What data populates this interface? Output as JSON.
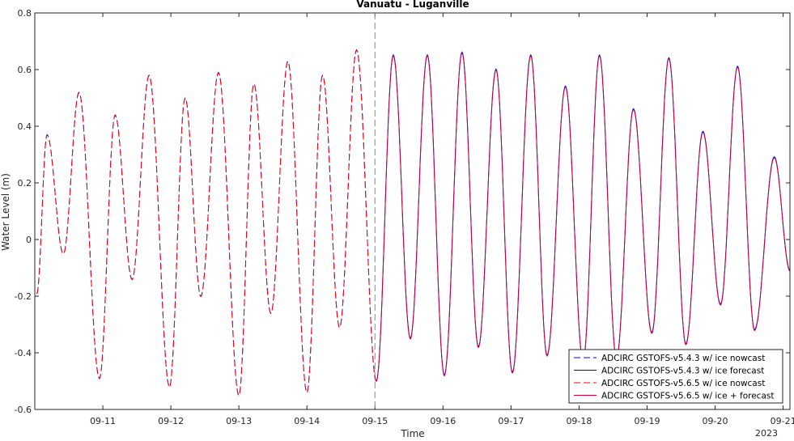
{
  "chart_data": {
    "type": "line",
    "title": "Vanuatu - Luganville",
    "xlabel": "Time",
    "ylabel": "Water Level (m)",
    "x_start": "2023-09-10 00:00",
    "x_end": "2023-09-21 03:00",
    "xlim_days": [
      0,
      11.1
    ],
    "ylim": [
      -0.6,
      0.8
    ],
    "x_ticks": [
      "09-11",
      "09-12",
      "09-13",
      "09-14",
      "09-15",
      "09-16",
      "09-17",
      "09-18",
      "09-19",
      "09-20",
      "09-21"
    ],
    "x_tick_year": "2023",
    "y_ticks": [
      "0.8",
      "0.6",
      "0.4",
      "0.2",
      "0",
      "-0.2",
      "-0.4",
      "-0.6"
    ],
    "y_tick_values": [
      0.8,
      0.6,
      0.4,
      0.2,
      0,
      -0.2,
      -0.4,
      -0.6
    ],
    "nowcast_forecast_divider": "09-15",
    "grid": false,
    "legend_position": "bottom-right",
    "series": [
      {
        "name": "ADCIRC GSTOFS-v5.4.3 w/ ice nowcast",
        "color": "#0000ff",
        "style": "dashed",
        "segment": "nowcast"
      },
      {
        "name": "ADCIRC GSTOFS-v5.4.3 w/ ice forecast",
        "color": "#0000ff",
        "style": "solid",
        "segment": "forecast"
      },
      {
        "name": "ADCIRC GSTOFS-v5.6.5 w/ ice nowcast",
        "color": "#ff0000",
        "style": "dashed",
        "segment": "nowcast"
      },
      {
        "name": "ADCIRC GSTOFS-v5.6.5 w/ ice + forecast",
        "color": "#cc0033",
        "style": "solid",
        "segment": "forecast"
      }
    ],
    "tidal_extrema": [
      {
        "t": 0.03,
        "y": -0.19
      },
      {
        "t": 0.18,
        "y": 0.37
      },
      {
        "t": 0.42,
        "y": -0.05
      },
      {
        "t": 0.65,
        "y": 0.52
      },
      {
        "t": 0.95,
        "y": -0.49
      },
      {
        "t": 1.18,
        "y": 0.44
      },
      {
        "t": 1.43,
        "y": -0.14
      },
      {
        "t": 1.68,
        "y": 0.58
      },
      {
        "t": 1.98,
        "y": -0.52
      },
      {
        "t": 2.21,
        "y": 0.5
      },
      {
        "t": 2.44,
        "y": -0.2
      },
      {
        "t": 2.7,
        "y": 0.59
      },
      {
        "t": 3.0,
        "y": -0.55
      },
      {
        "t": 3.22,
        "y": 0.55
      },
      {
        "t": 3.47,
        "y": -0.26
      },
      {
        "t": 3.72,
        "y": 0.63
      },
      {
        "t": 4.0,
        "y": -0.54
      },
      {
        "t": 4.23,
        "y": 0.58
      },
      {
        "t": 4.48,
        "y": -0.31
      },
      {
        "t": 4.73,
        "y": 0.67
      },
      {
        "t": 5.02,
        "y": -0.5
      },
      {
        "t": 5.27,
        "y": 0.65
      },
      {
        "t": 5.52,
        "y": -0.35
      },
      {
        "t": 5.77,
        "y": 0.65
      },
      {
        "t": 6.02,
        "y": -0.48
      },
      {
        "t": 6.28,
        "y": 0.66
      },
      {
        "t": 6.52,
        "y": -0.38
      },
      {
        "t": 6.78,
        "y": 0.6
      },
      {
        "t": 7.02,
        "y": -0.47
      },
      {
        "t": 7.29,
        "y": 0.65
      },
      {
        "t": 7.53,
        "y": -0.41
      },
      {
        "t": 7.8,
        "y": 0.54
      },
      {
        "t": 8.06,
        "y": -0.43
      },
      {
        "t": 8.3,
        "y": 0.65
      },
      {
        "t": 8.55,
        "y": -0.42
      },
      {
        "t": 8.8,
        "y": 0.46
      },
      {
        "t": 9.07,
        "y": -0.33
      },
      {
        "t": 9.32,
        "y": 0.64
      },
      {
        "t": 9.57,
        "y": -0.37
      },
      {
        "t": 9.82,
        "y": 0.38
      },
      {
        "t": 10.08,
        "y": -0.23
      },
      {
        "t": 10.33,
        "y": 0.61
      },
      {
        "t": 10.58,
        "y": -0.32
      },
      {
        "t": 10.87,
        "y": 0.29
      },
      {
        "t": 11.1,
        "y": -0.11
      }
    ]
  }
}
